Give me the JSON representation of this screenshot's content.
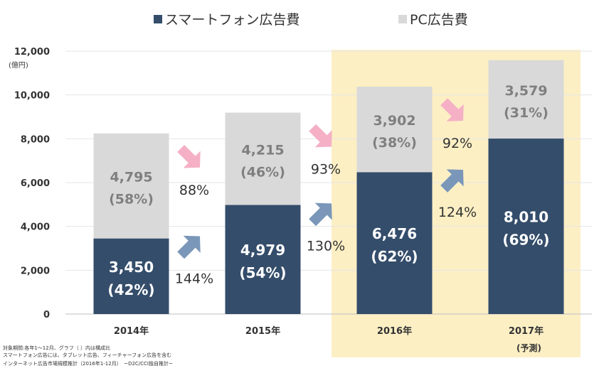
{
  "chart_data": {
    "type": "bar",
    "stacked": true,
    "legend_position": "top",
    "grid": true,
    "y_unit_label": "(億円)",
    "ylim": [
      0,
      12000
    ],
    "y_ticks": [
      "0",
      "2,000",
      "4,000",
      "6,000",
      "8,000",
      "10,000",
      "12,000"
    ],
    "categories": [
      "2014年",
      "2015年",
      "2016年",
      "2017年"
    ],
    "category_notes": [
      "",
      "",
      "",
      "(予測)"
    ],
    "highlighted_categories": [
      "2016年",
      "2017年"
    ],
    "highlight_color": "#fcefc4",
    "series": [
      {
        "name": "スマートフォン広告費",
        "color": "#344d6b",
        "values": [
          3450,
          4979,
          6476,
          8010
        ],
        "value_labels": [
          "3,450",
          "4,979",
          "6,476",
          "8,010"
        ],
        "share_labels": [
          "(42%)",
          "(54%)",
          "(62%)",
          "(69%)"
        ]
      },
      {
        "name": "PC広告費",
        "color": "#d9d9d9",
        "values": [
          4795,
          4215,
          3902,
          3579
        ],
        "value_labels": [
          "4,795",
          "4,215",
          "3,902",
          "3,579"
        ],
        "share_labels": [
          "(58%)",
          "(46%)",
          "(38%)",
          "(31%)"
        ]
      }
    ],
    "growth_annotations": {
      "smartphone": {
        "labels": [
          "144%",
          "130%",
          "124%"
        ],
        "arrow_color": "#7a97b9",
        "direction": "up"
      },
      "pc": {
        "labels": [
          "88%",
          "93%",
          "92%"
        ],
        "arrow_color": "#f5b0c6",
        "direction": "down"
      }
    }
  },
  "footnotes": [
    "対象期間:各年1～12月、グラフ（ ）内は構成比",
    "スマートフォン広告には、タブレット広告、フィーチャーフォン広告を含む",
    "インターネット広告市場規模推計（2016年1-12月）　~D2C/CCI独自推計~"
  ]
}
